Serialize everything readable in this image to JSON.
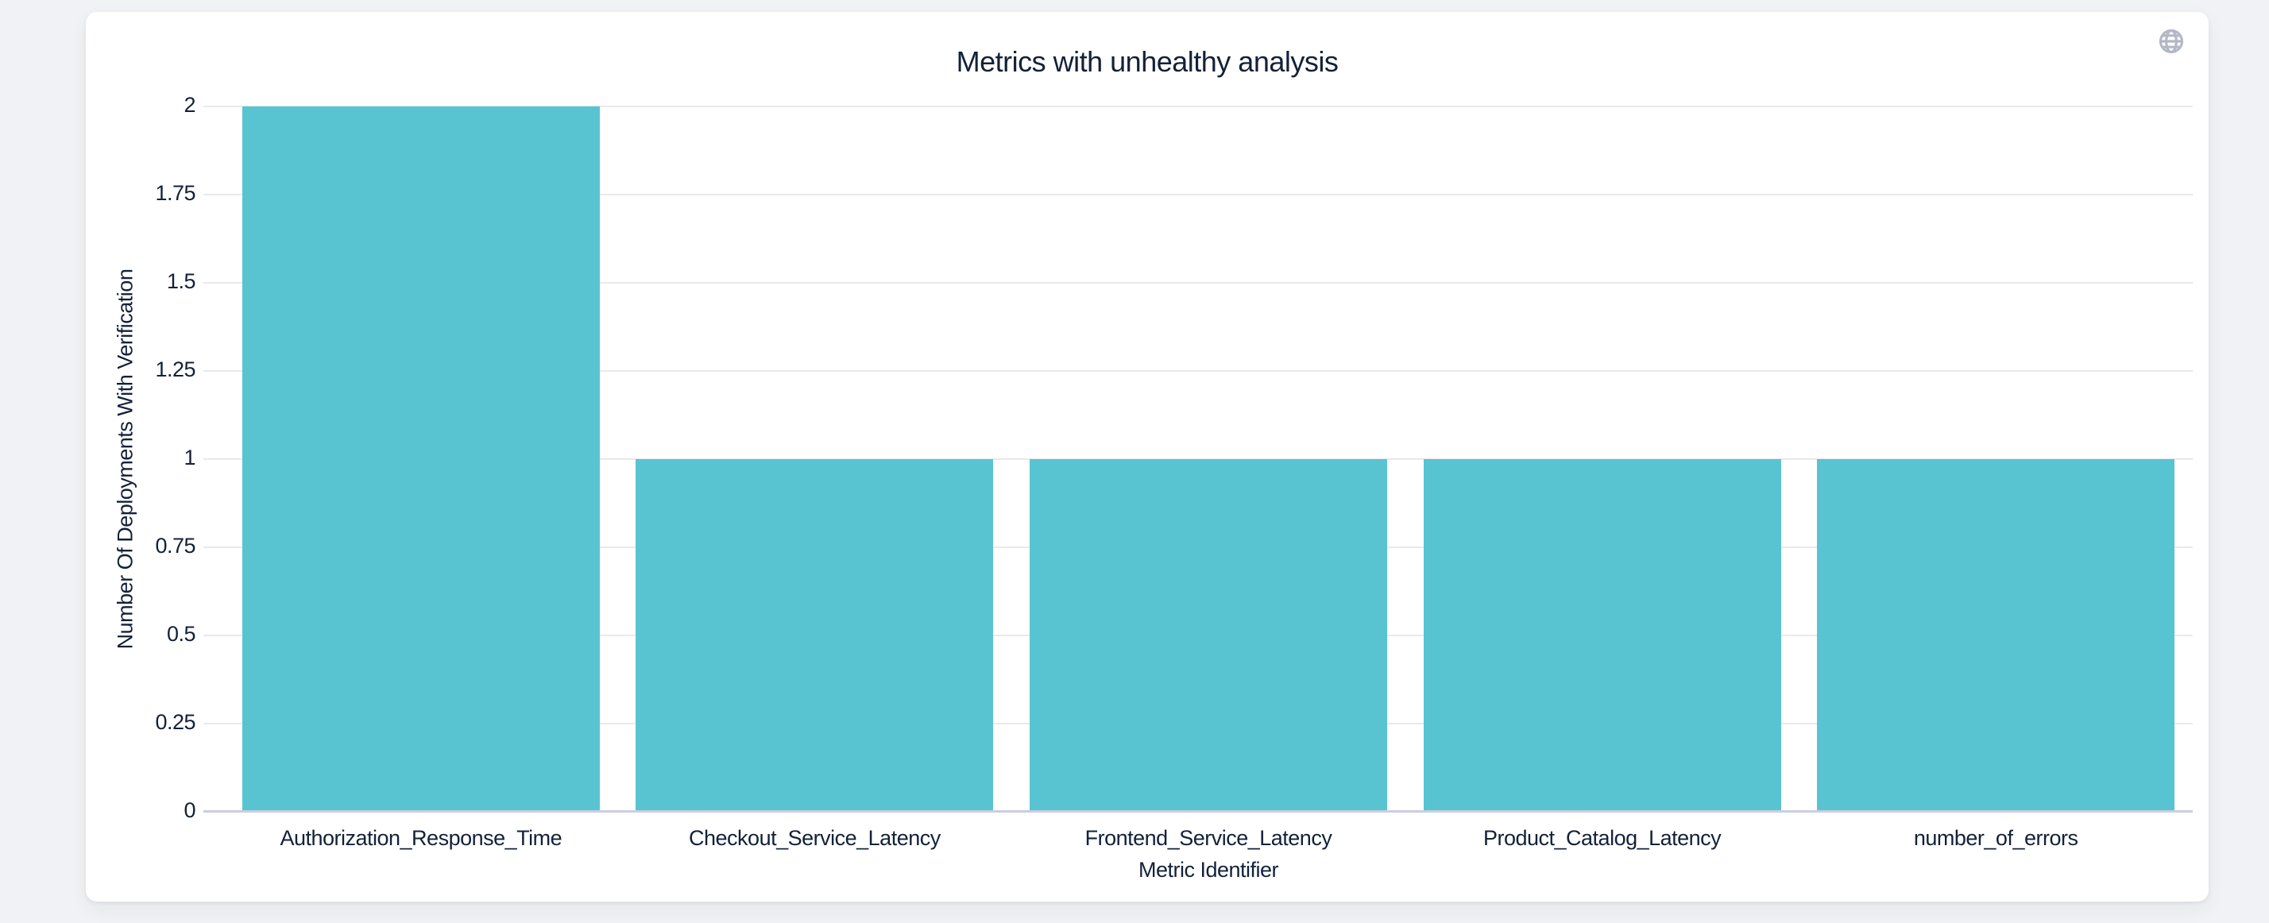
{
  "page": {
    "background_color": "#f1f2f5"
  },
  "card": {
    "background_color": "#ffffff"
  },
  "header": {
    "globe_icon_color": "#b2b8c4"
  },
  "chart_data": {
    "type": "bar",
    "title": "Metrics with unhealthy analysis",
    "categories": [
      "Authorization_Response_Time",
      "Checkout_Service_Latency",
      "Frontend_Service_Latency",
      "Product_Catalog_Latency",
      "number_of_errors"
    ],
    "values": [
      2,
      1,
      1,
      1,
      1
    ],
    "xlabel": "Metric Identifier",
    "ylabel": "Number Of Deployments With Verification",
    "ylim": [
      0,
      2
    ],
    "yticks": [
      "0",
      "0.25",
      "0.5",
      "0.75",
      "1",
      "1.25",
      "1.5",
      "1.75",
      "2"
    ],
    "grid": true,
    "legend": false,
    "bar_color": "#58c4d2",
    "gridline_color": "#e8e9ed",
    "baseline_color": "#c9cfe0",
    "text_color": "#132138"
  }
}
